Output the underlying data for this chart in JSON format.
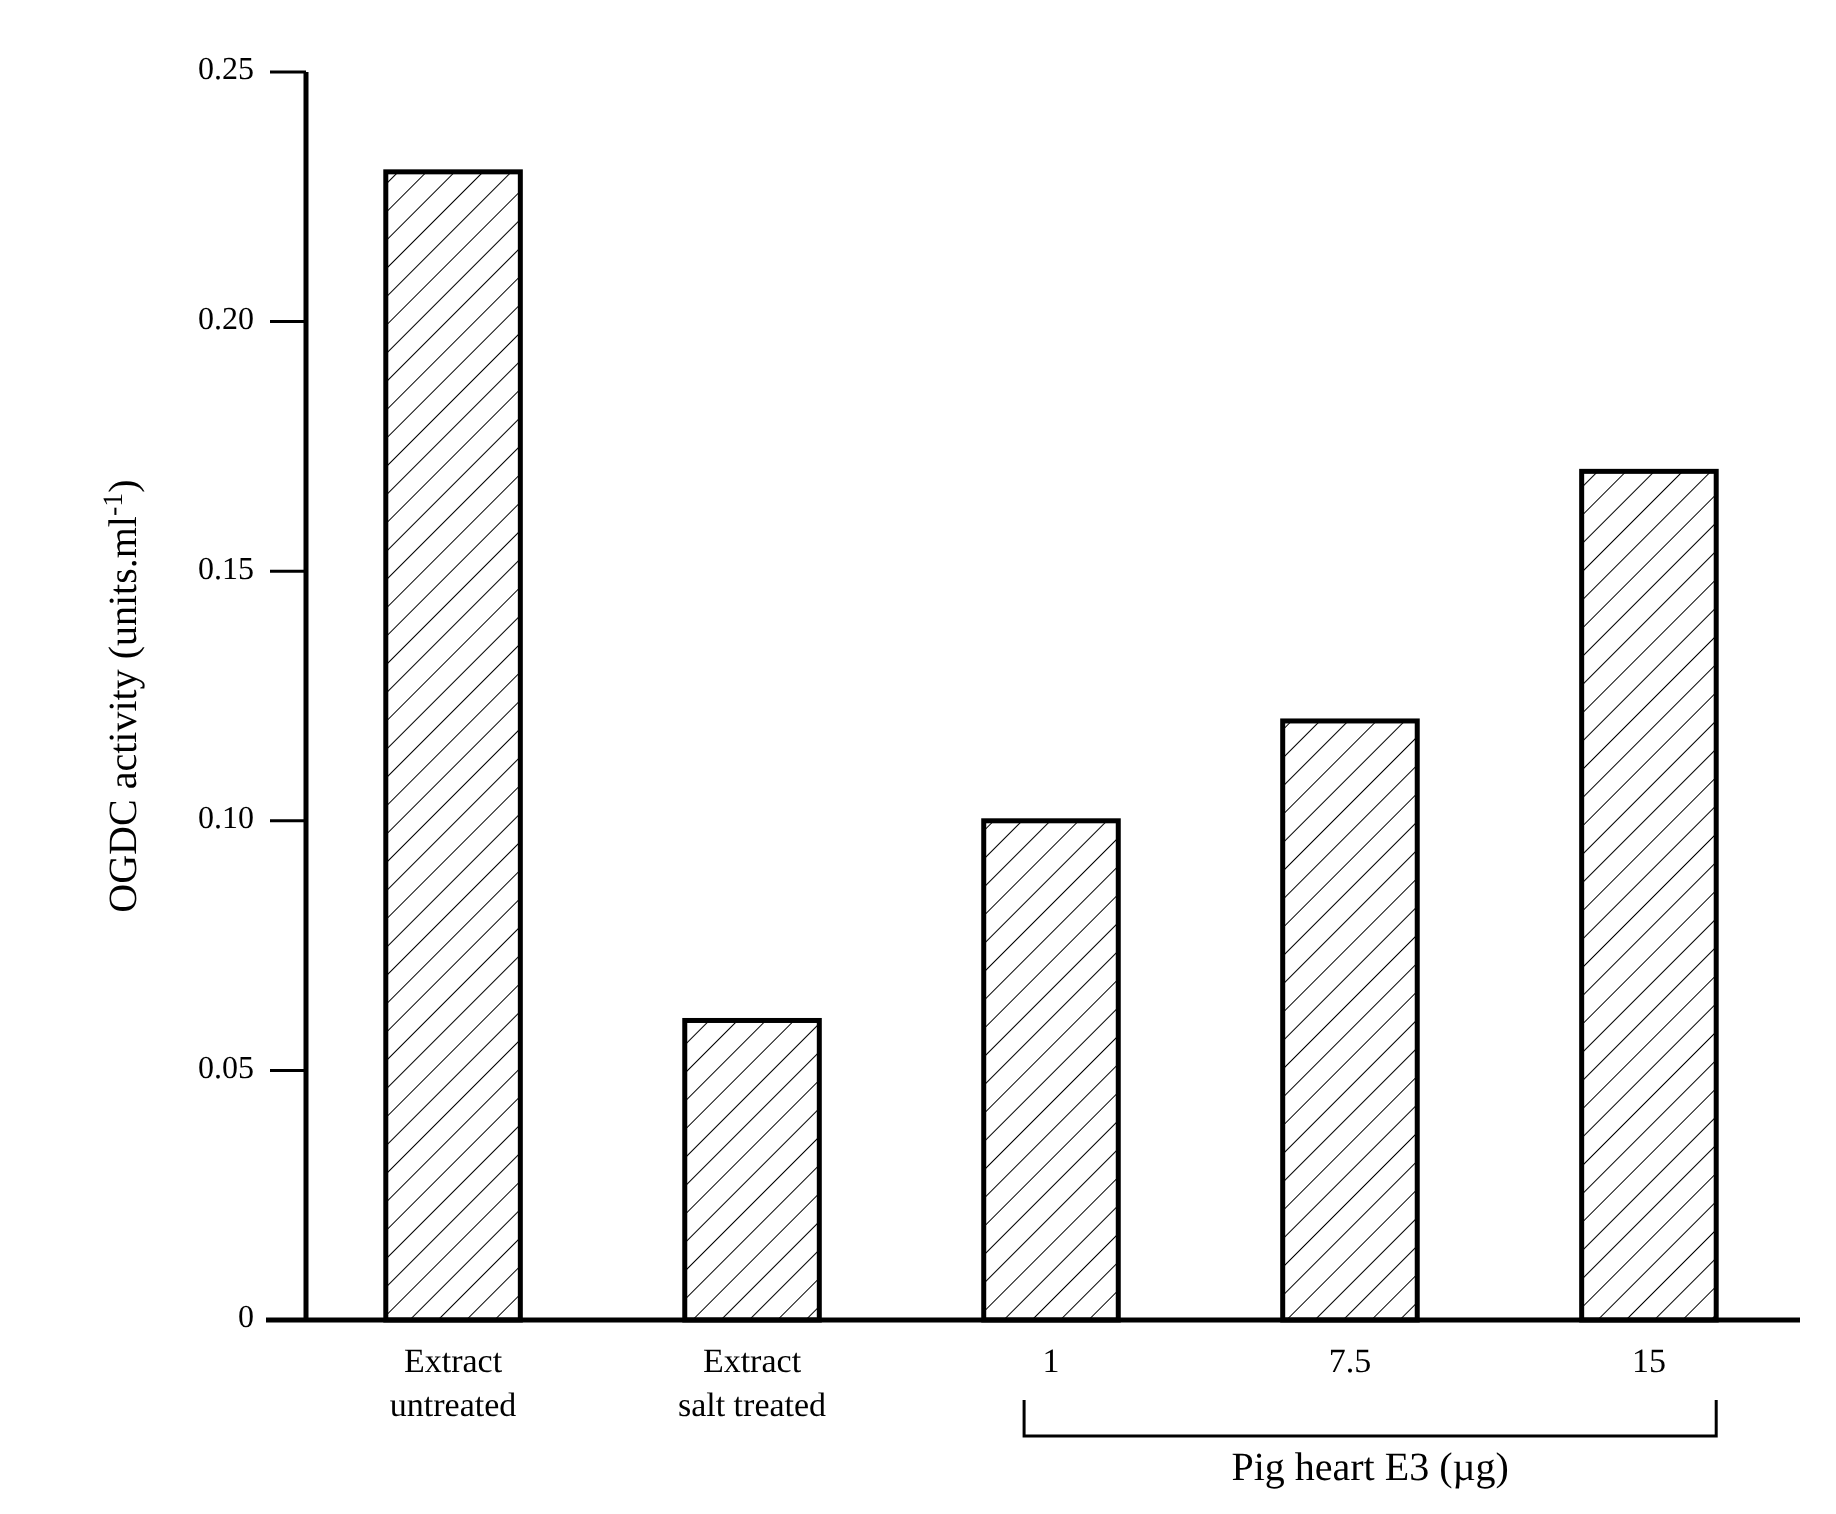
{
  "chart_data": {
    "type": "bar",
    "ylabel": "OGDC activity (units.ml$^{-1}$)",
    "categories": [
      "Extract untreated",
      "Extract salt treated",
      "1",
      "7.5",
      "15"
    ],
    "values": [
      0.23,
      0.06,
      0.1,
      0.12,
      0.17
    ],
    "color": "#000000",
    "ylim": [
      0,
      0.25
    ],
    "yticks": [
      0,
      0.05,
      {
        "value": 0.1,
        "label": "0.10"
      },
      0.15,
      {
        "value": 0.2,
        "label": "0.20"
      },
      0.25
    ],
    "annotations": [
      "Pig heart E3 (µg)"
    ]
  }
}
